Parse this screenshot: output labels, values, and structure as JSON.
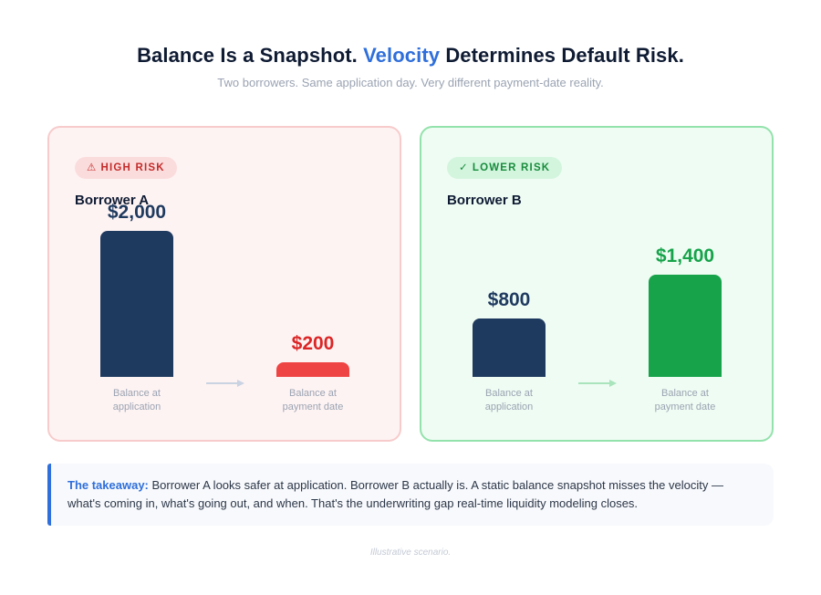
{
  "header": {
    "title_part1": "Balance Is a Snapshot.",
    "title_highlight": "Velocity",
    "title_part2": "Determines Default Risk.",
    "subtitle": "Two borrowers. Same application day. Very different payment-date reality."
  },
  "panels": [
    {
      "badge_icon": "⚠",
      "badge_text": "HIGH RISK",
      "borrower": "Borrower A",
      "items": [
        {
          "value_label": "$2,000",
          "caption_line1": "Balance at",
          "caption_line2": "application"
        },
        {
          "value_label": "$200",
          "caption_line1": "Balance at",
          "caption_line2": "payment date"
        }
      ]
    },
    {
      "badge_icon": "✓",
      "badge_text": "LOWER RISK",
      "borrower": "Borrower B",
      "items": [
        {
          "value_label": "$800",
          "caption_line1": "Balance at",
          "caption_line2": "application"
        },
        {
          "value_label": "$1,400",
          "caption_line1": "Balance at",
          "caption_line2": "payment date"
        }
      ]
    }
  ],
  "takeaway": {
    "lead": "The takeaway:",
    "text": " Borrower A looks safer at application. Borrower B actually is. A static balance snapshot misses the velocity — what's coming in, what's going out, and when. That's the underwriting gap real-time liquidity modeling closes."
  },
  "footnote": "Illustrative scenario.",
  "colors": {
    "application_bar": "#1f3a5f",
    "payment_bar_a": "#ef4444",
    "payment_bar_b": "#16a34a",
    "value_application": "#1f3a5f",
    "value_payment_a": "#dc2626",
    "value_payment_b": "#16a34a",
    "accent": "#2f6fdb"
  },
  "chart_data": [
    {
      "type": "bar",
      "series_label": "Borrower A",
      "categories": [
        "Balance at application",
        "Balance at payment date"
      ],
      "values": [
        2000,
        200
      ],
      "ylim": [
        0,
        2000
      ]
    },
    {
      "type": "bar",
      "series_label": "Borrower B",
      "categories": [
        "Balance at application",
        "Balance at payment date"
      ],
      "values": [
        800,
        1400
      ],
      "ylim": [
        0,
        2000
      ]
    }
  ]
}
